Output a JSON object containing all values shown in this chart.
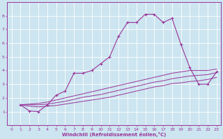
{
  "background_color": "#cce5f0",
  "grid_color": "#ffffff",
  "line_color": "#993399",
  "xlabel": "Windchill (Refroidissement éolien,°C)",
  "xlim": [
    -0.5,
    23.5
  ],
  "ylim": [
    0,
    9
  ],
  "xticks": [
    0,
    1,
    2,
    3,
    4,
    5,
    6,
    7,
    8,
    9,
    10,
    11,
    12,
    13,
    14,
    15,
    16,
    17,
    18,
    19,
    20,
    21,
    22,
    23
  ],
  "yticks": [
    1,
    2,
    3,
    4,
    5,
    6,
    7,
    8
  ],
  "line1_x": [
    1,
    2,
    3,
    4,
    5,
    6,
    7,
    8,
    9,
    10,
    11,
    12,
    13,
    14,
    15,
    16,
    17,
    18,
    19,
    20,
    21,
    22,
    23
  ],
  "line1_y": [
    1.5,
    1.05,
    1.0,
    1.5,
    2.2,
    2.5,
    3.8,
    3.8,
    4.0,
    4.5,
    5.0,
    6.5,
    7.5,
    7.5,
    8.1,
    8.1,
    7.5,
    7.8,
    5.9,
    4.2,
    3.0,
    3.0,
    3.9
  ],
  "line2_x": [
    1,
    2,
    3,
    4,
    5,
    6,
    7,
    8,
    9,
    10,
    11,
    12,
    13,
    14,
    15,
    16,
    17,
    18,
    19,
    20,
    21,
    22,
    23
  ],
  "line2_y": [
    1.5,
    1.4,
    1.35,
    1.4,
    1.45,
    1.55,
    1.65,
    1.75,
    1.85,
    1.95,
    2.05,
    2.2,
    2.35,
    2.5,
    2.65,
    2.8,
    2.9,
    3.05,
    3.1,
    3.2,
    3.25,
    3.35,
    3.5
  ],
  "line3_x": [
    1,
    2,
    3,
    4,
    5,
    6,
    7,
    8,
    9,
    10,
    11,
    12,
    13,
    14,
    15,
    16,
    17,
    18,
    19,
    20,
    21,
    22,
    23
  ],
  "line3_y": [
    1.5,
    1.5,
    1.5,
    1.55,
    1.65,
    1.75,
    1.9,
    2.05,
    2.15,
    2.25,
    2.4,
    2.55,
    2.7,
    2.85,
    3.0,
    3.15,
    3.25,
    3.4,
    3.5,
    3.6,
    3.65,
    3.7,
    3.85
  ],
  "line4_x": [
    1,
    2,
    3,
    4,
    5,
    6,
    7,
    8,
    9,
    10,
    11,
    12,
    13,
    14,
    15,
    16,
    17,
    18,
    19,
    20,
    21,
    22,
    23
  ],
  "line4_y": [
    1.5,
    1.55,
    1.6,
    1.7,
    1.85,
    2.0,
    2.15,
    2.3,
    2.45,
    2.6,
    2.75,
    2.9,
    3.05,
    3.2,
    3.35,
    3.5,
    3.65,
    3.8,
    3.9,
    4.0,
    4.0,
    4.0,
    4.1
  ]
}
